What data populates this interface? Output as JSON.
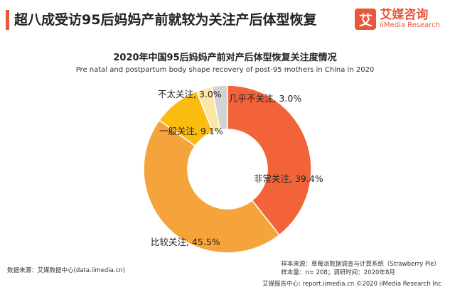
{
  "header": {
    "title": "超八成受访95后妈妈产前就较为关注产后体型恢复"
  },
  "brand": {
    "logo_glyph": "艾",
    "name": "艾媒咨询",
    "sub": "iiMedia Research",
    "color": "#e8573a"
  },
  "chart_data": {
    "type": "pie",
    "donut": true,
    "title": "2020年中国95后妈妈产前对产后体型恢复关注度情况",
    "subtitle": "Pre natal and postpartum body shape recovery of post-95 mothers in China in 2020",
    "unit": "%",
    "slices": [
      {
        "label": "非常关注",
        "value": 39.4,
        "color": "#f2633a"
      },
      {
        "label": "比较关注",
        "value": 45.5,
        "color": "#f5a33b"
      },
      {
        "label": "一般关注",
        "value": 9.1,
        "color": "#fbbc10"
      },
      {
        "label": "不太关注",
        "value": 3.0,
        "color": "#fce6a6"
      },
      {
        "label": "几乎不关注",
        "value": 3.0,
        "color": "#d3d3d3"
      }
    ],
    "data_labels": [
      "非常关注, 39.4%",
      "比较关注, 45.5%",
      "一般关注, 9.1%",
      "不太关注, 3.0%",
      "几乎不关注, 3.0%"
    ]
  },
  "footer": {
    "source": "数据来源：艾媒数据中心(data.iimedia.cn)",
    "sample_source": "样本来源：草莓派数据调查与计算系统（Strawberry Pie）",
    "sample_size": "样本量：n= 208；调研时间：2020年8月",
    "report_site": "艾媒报告中心: report.iimedia.cn  ©2020  iiMedia Research  Inc"
  }
}
